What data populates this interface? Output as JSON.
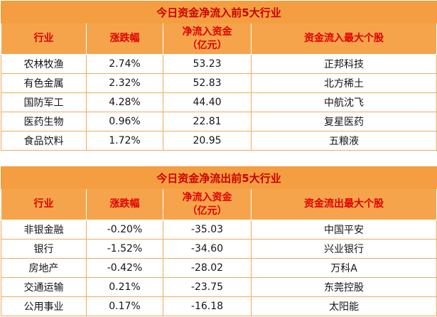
{
  "colors": {
    "title_bg": "#F59E41",
    "header_bg": "#F6A44C",
    "title_text": "#CB0000",
    "header_text": "#E10000",
    "cell_text": "#141414",
    "grid_line": "#F3AA5E"
  },
  "chart_data": [
    {
      "type": "table",
      "title": "今日资金净流入前5大行业",
      "headers": {
        "industry": "行业",
        "change": "涨跌幅",
        "net_line1": "净流入资金",
        "net_line2": "（亿元）",
        "top_stock": "资金流入最大个股"
      },
      "rows": [
        [
          "农林牧渔",
          "2.74%",
          "53.23",
          "正邦科技"
        ],
        [
          "有色金属",
          "2.32%",
          "52.83",
          "北方稀土"
        ],
        [
          "国防军工",
          "4.28%",
          "44.40",
          "中航沈飞"
        ],
        [
          "医药生物",
          "0.96%",
          "22.81",
          "复星医药"
        ],
        [
          "食品饮料",
          "1.72%",
          "20.95",
          "五粮液"
        ]
      ]
    },
    {
      "type": "table",
      "title": "今日资金净流出前5大行业",
      "headers": {
        "industry": "行业",
        "change": "涨跌幅",
        "net_line1": "净流入资金",
        "net_line2": "（亿元）",
        "top_stock": "资金流出最大个股"
      },
      "rows": [
        [
          "非银金融",
          "-0.20%",
          "-35.03",
          "中国平安"
        ],
        [
          "银行",
          "-1.52%",
          "-34.60",
          "兴业银行"
        ],
        [
          "房地产",
          "-0.42%",
          "-28.02",
          "万科A"
        ],
        [
          "交通运输",
          "0.21%",
          "-23.75",
          "东莞控股"
        ],
        [
          "公用事业",
          "0.17%",
          "-16.18",
          "太阳能"
        ]
      ]
    }
  ]
}
